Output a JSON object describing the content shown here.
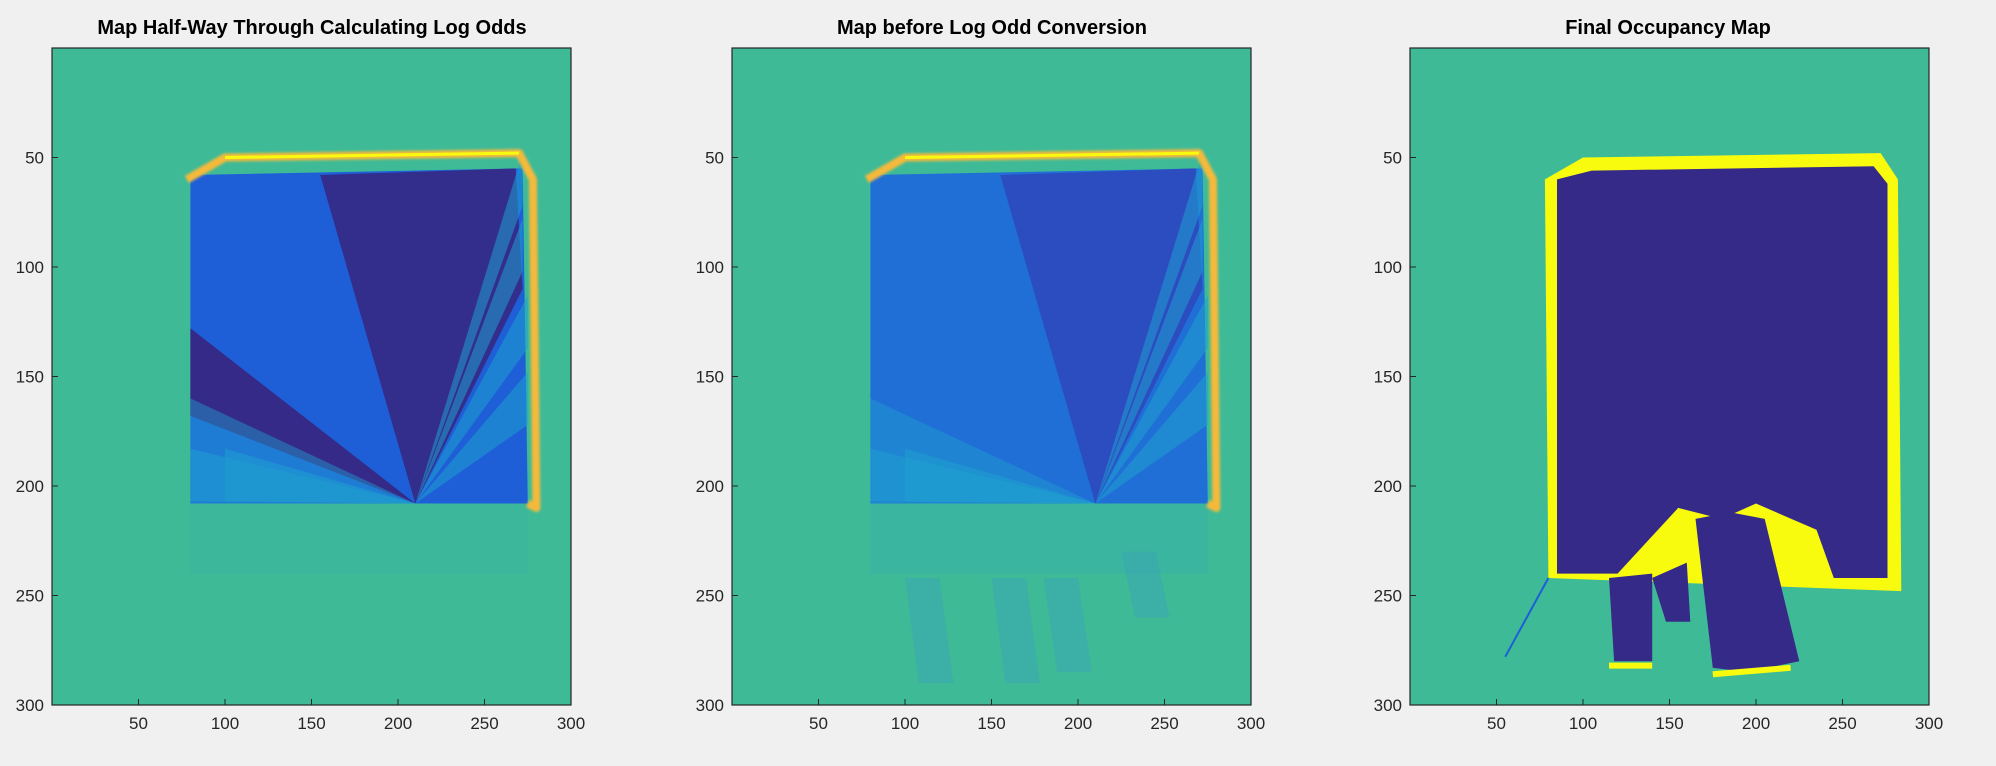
{
  "figure": {
    "background": "#f0f0f0",
    "colormap": "parula",
    "colors": {
      "background_field": "#3fba97",
      "free_dark": "#352a87",
      "free_mid": "#1e5fd8",
      "free_light": "#1f9fd0",
      "occupied": "#f9fb0e",
      "occupied_edge": "#f5b93a"
    }
  },
  "chart_data": [
    {
      "type": "heatmap",
      "title": "Map Half-Way Through Calculating Log Odds",
      "xlabel": "",
      "ylabel": "",
      "xlim": [
        0,
        300
      ],
      "ylim": [
        300,
        0
      ],
      "xticks": [
        50,
        100,
        150,
        200,
        250,
        300
      ],
      "yticks": [
        50,
        100,
        150,
        200,
        250,
        300
      ],
      "grid": false,
      "robot_position": [
        210,
        208
      ],
      "room_outline": [
        [
          78,
          60
        ],
        [
          100,
          50
        ],
        [
          270,
          48
        ],
        [
          278,
          60
        ],
        [
          280,
          210
        ],
        [
          80,
          210
        ]
      ]
    },
    {
      "type": "heatmap",
      "title": "Map before Log Odd Conversion",
      "xlabel": "",
      "ylabel": "",
      "xlim": [
        0,
        300
      ],
      "ylim": [
        300,
        0
      ],
      "xticks": [
        50,
        100,
        150,
        200,
        250,
        300
      ],
      "yticks": [
        50,
        100,
        150,
        200,
        250,
        300
      ],
      "grid": false,
      "robot_position": [
        210,
        208
      ],
      "room_outline": [
        [
          78,
          60
        ],
        [
          100,
          50
        ],
        [
          270,
          48
        ],
        [
          278,
          60
        ],
        [
          280,
          210
        ],
        [
          80,
          210
        ]
      ]
    },
    {
      "type": "heatmap",
      "title": "Final Occupancy Map",
      "xlabel": "",
      "ylabel": "",
      "xlim": [
        0,
        300
      ],
      "ylim": [
        300,
        0
      ],
      "xticks": [
        50,
        100,
        150,
        200,
        250,
        300
      ],
      "yticks": [
        50,
        100,
        150,
        200,
        250,
        300
      ],
      "grid": false,
      "room_outline": [
        [
          78,
          60
        ],
        [
          100,
          50
        ],
        [
          272,
          48
        ],
        [
          282,
          60
        ],
        [
          284,
          248
        ],
        [
          80,
          242
        ]
      ]
    }
  ]
}
